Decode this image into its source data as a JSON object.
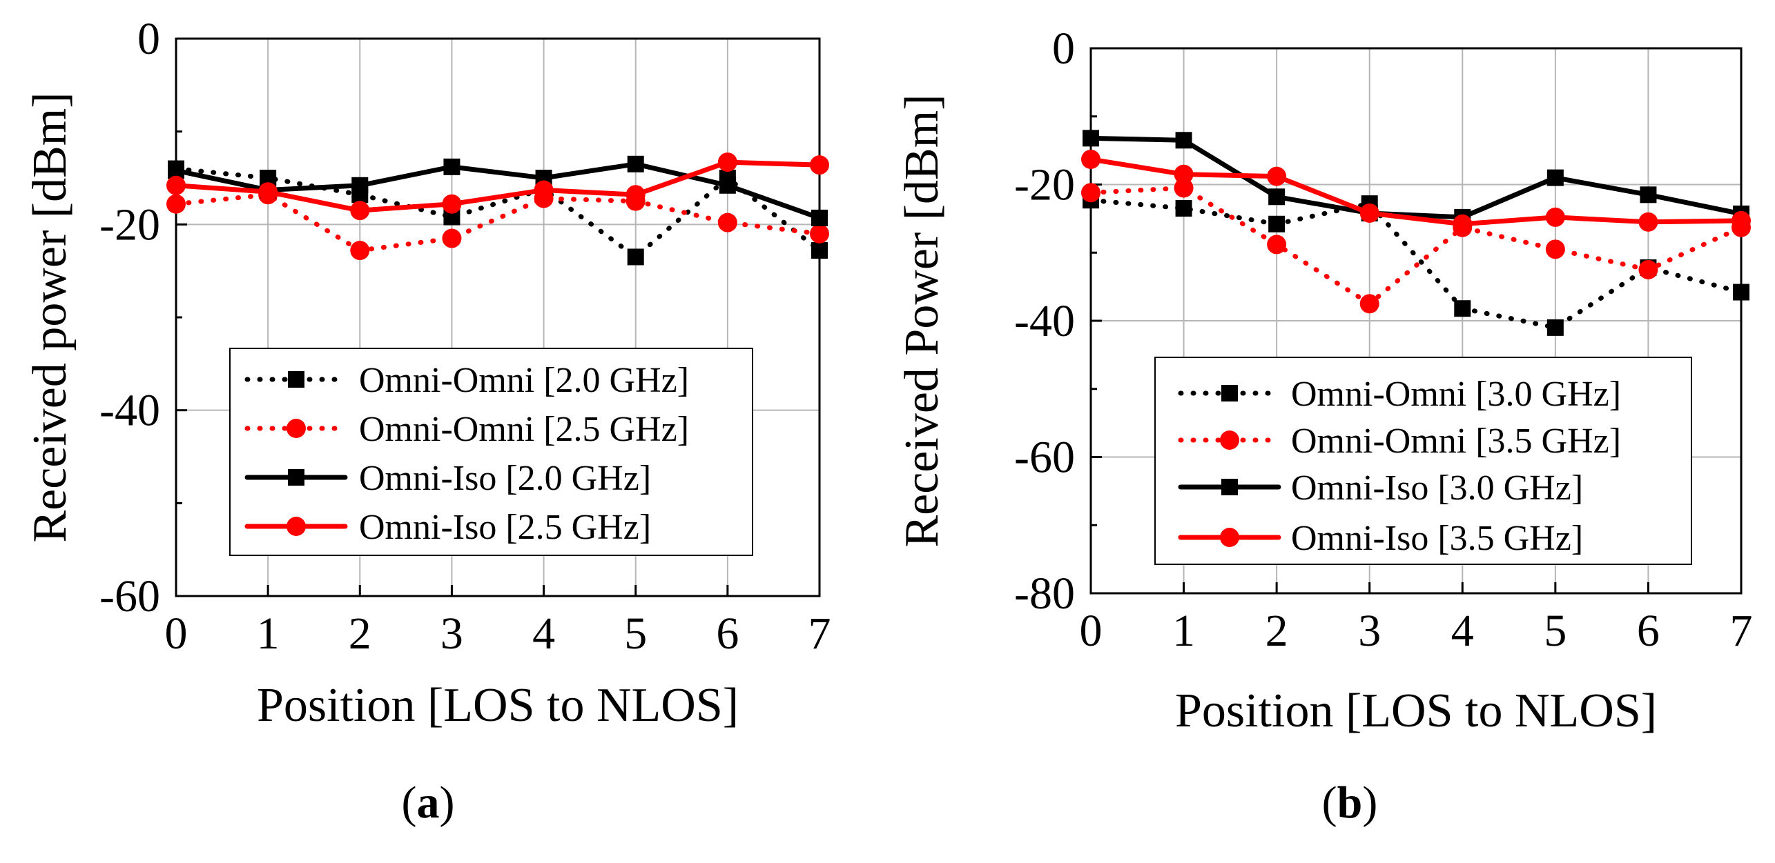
{
  "chart_data": [
    {
      "id": "a",
      "type": "line",
      "caption_letter": "a",
      "xlabel": "Position [LOS to NLOS]",
      "ylabel": "Received power [dBm]",
      "xlim": [
        0,
        7
      ],
      "ylim": [
        -60,
        0
      ],
      "xticks": [
        0,
        1,
        2,
        3,
        4,
        5,
        6,
        7
      ],
      "yticks": [
        0,
        -20,
        -40,
        -60
      ],
      "ytick_labels": [
        "0",
        "-20",
        "-40",
        "-60"
      ],
      "grid": true,
      "legend_position": "lower-center",
      "series": [
        {
          "name": "Omni-Omni [2.0 GHz]",
          "color": "#000000",
          "style": "dotted",
          "marker": "square",
          "x": [
            0,
            1,
            2,
            3,
            4,
            5,
            6,
            7
          ],
          "values": [
            -14,
            -15,
            -16.8,
            -19.2,
            -16.2,
            -23.5,
            -15,
            -22.8
          ]
        },
        {
          "name": "Omni-Omni [2.5 GHz]",
          "color": "#ff0000",
          "style": "dotted",
          "marker": "circle",
          "x": [
            0,
            1,
            2,
            3,
            4,
            5,
            6,
            7
          ],
          "values": [
            -17.8,
            -16.8,
            -22.8,
            -21.5,
            -17.2,
            -17.5,
            -19.8,
            -21
          ]
        },
        {
          "name": "Omni-Iso [2.0 GHz]",
          "color": "#000000",
          "style": "solid",
          "marker": "square",
          "x": [
            0,
            1,
            2,
            3,
            4,
            5,
            6,
            7
          ],
          "values": [
            -14.2,
            -16.3,
            -15.8,
            -13.8,
            -15,
            -13.5,
            -15.8,
            -19.3
          ]
        },
        {
          "name": "Omni-Iso [2.5 GHz]",
          "color": "#ff0000",
          "style": "solid",
          "marker": "circle",
          "x": [
            0,
            1,
            2,
            3,
            4,
            5,
            6,
            7
          ],
          "values": [
            -15.8,
            -16.5,
            -18.5,
            -17.8,
            -16.3,
            -16.8,
            -13.3,
            -13.6
          ]
        }
      ]
    },
    {
      "id": "b",
      "type": "line",
      "caption_letter": "b",
      "xlabel": "Position [LOS to NLOS]",
      "ylabel": "Received Power [dBm]",
      "xlim": [
        0,
        7
      ],
      "ylim": [
        -80,
        0
      ],
      "xticks": [
        0,
        1,
        2,
        3,
        4,
        5,
        6,
        7
      ],
      "yticks": [
        0,
        -20,
        -40,
        -60,
        -80
      ],
      "ytick_labels": [
        "0",
        "-20",
        "-40",
        "-60",
        "-80"
      ],
      "grid": true,
      "legend_position": "lower-center",
      "series": [
        {
          "name": "Omni-Omni [3.0 GHz]",
          "color": "#000000",
          "style": "dotted",
          "marker": "square",
          "x": [
            0,
            1,
            2,
            3,
            4,
            5,
            6,
            7
          ],
          "values": [
            -22.3,
            -23.5,
            -25.8,
            -22.8,
            -38.2,
            -41,
            -32.2,
            -35.8
          ]
        },
        {
          "name": "Omni-Omni [3.5 GHz]",
          "color": "#ff0000",
          "style": "dotted",
          "marker": "circle",
          "x": [
            0,
            1,
            2,
            3,
            4,
            5,
            6,
            7
          ],
          "values": [
            -21.2,
            -20.5,
            -28.8,
            -37.5,
            -26.3,
            -29.5,
            -32.5,
            -26.3
          ]
        },
        {
          "name": "Omni-Iso [3.0 GHz]",
          "color": "#000000",
          "style": "solid",
          "marker": "square",
          "x": [
            0,
            1,
            2,
            3,
            4,
            5,
            6,
            7
          ],
          "values": [
            -13.2,
            -13.5,
            -21.8,
            -24.2,
            -24.8,
            -19,
            -21.5,
            -24.3
          ]
        },
        {
          "name": "Omni-Iso [3.5 GHz]",
          "color": "#ff0000",
          "style": "solid",
          "marker": "circle",
          "x": [
            0,
            1,
            2,
            3,
            4,
            5,
            6,
            7
          ],
          "values": [
            -16.3,
            -18.5,
            -18.8,
            -24.2,
            -25.8,
            -24.8,
            -25.5,
            -25.3
          ]
        }
      ]
    }
  ]
}
